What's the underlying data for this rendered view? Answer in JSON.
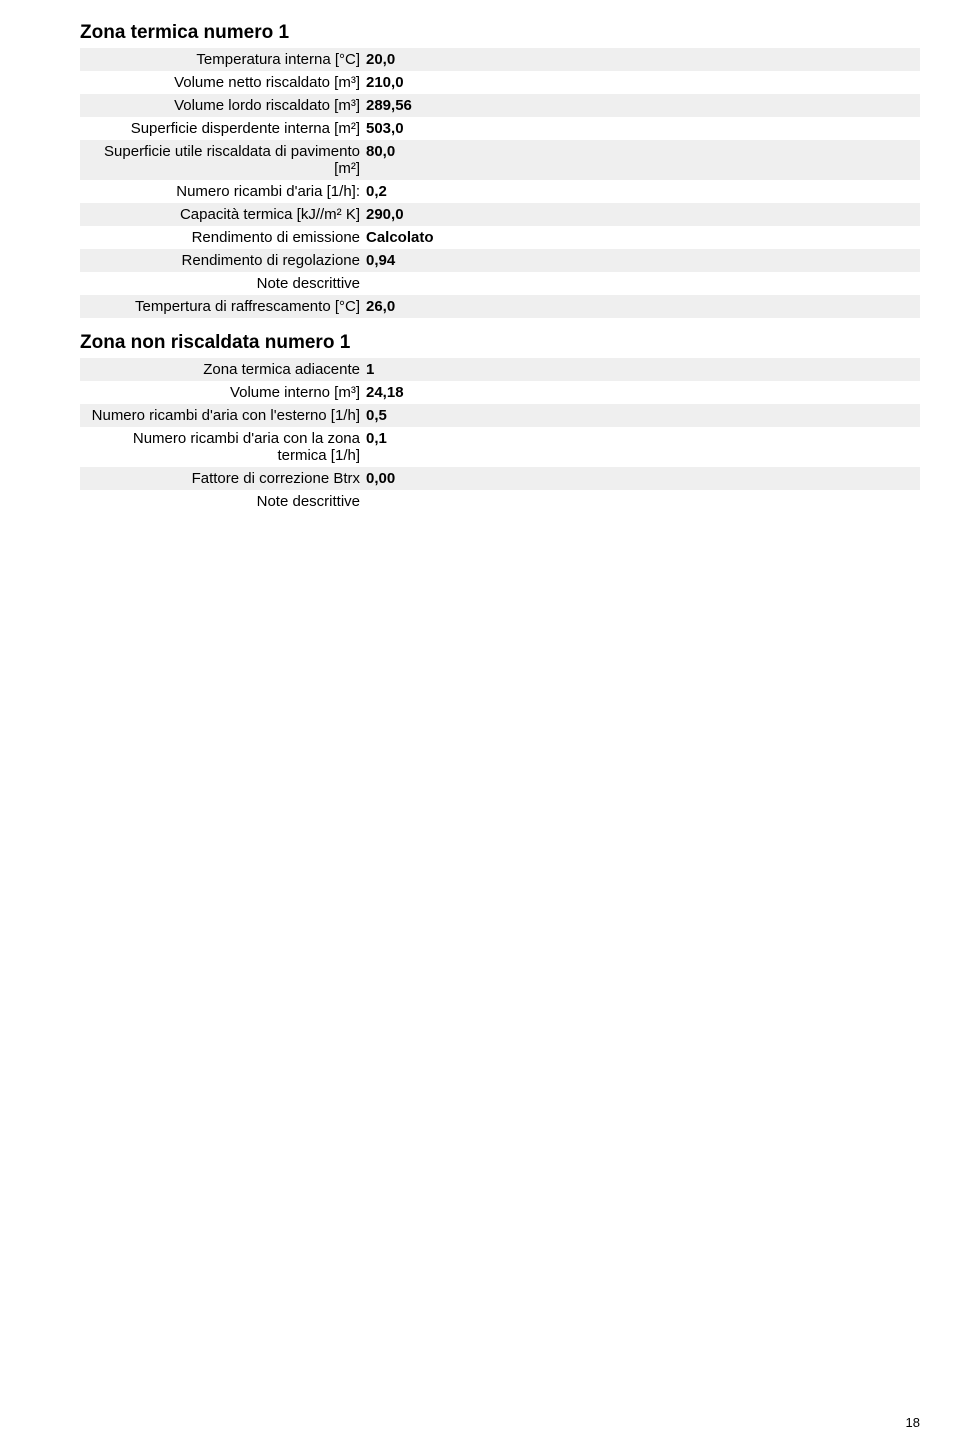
{
  "section1": {
    "title": "Zona termica numero 1",
    "rows": [
      {
        "label": "Temperatura interna [°C]",
        "value": "20,0"
      },
      {
        "label": "Volume netto riscaldato [m³]",
        "value": "210,0"
      },
      {
        "label": "Volume lordo riscaldato [m³]",
        "value": "289,56"
      },
      {
        "label": "Superficie disperdente interna [m²]",
        "value": "503,0"
      },
      {
        "label": "Superficie utile riscaldata di pavimento [m²]",
        "value": "80,0"
      },
      {
        "label": "Numero ricambi d'aria [1/h]:",
        "value": "0,2"
      },
      {
        "label": "Capacità termica [kJ//m² K]",
        "value": "290,0"
      },
      {
        "label": "Rendimento di emissione",
        "value": "Calcolato"
      },
      {
        "label": "Rendimento di regolazione",
        "value": "0,94"
      },
      {
        "label": "Note descrittive",
        "value": ""
      },
      {
        "label": "Tempertura di raffrescamento [°C]",
        "value": "26,0"
      }
    ]
  },
  "section2": {
    "title": "Zona non riscaldata numero 1",
    "rows": [
      {
        "label": "Zona termica adiacente",
        "value": "1"
      },
      {
        "label": "Volume interno [m³]",
        "value": "24,18"
      },
      {
        "label": "Numero ricambi d'aria con l'esterno [1/h]",
        "value": "0,5"
      },
      {
        "label": "Numero ricambi d'aria con la zona termica [1/h]",
        "value": "0,1"
      },
      {
        "label": "Fattore di correzione Btrx",
        "value": "0,00"
      },
      {
        "label": "Note descrittive",
        "value": ""
      }
    ]
  },
  "pageNumber": "18"
}
